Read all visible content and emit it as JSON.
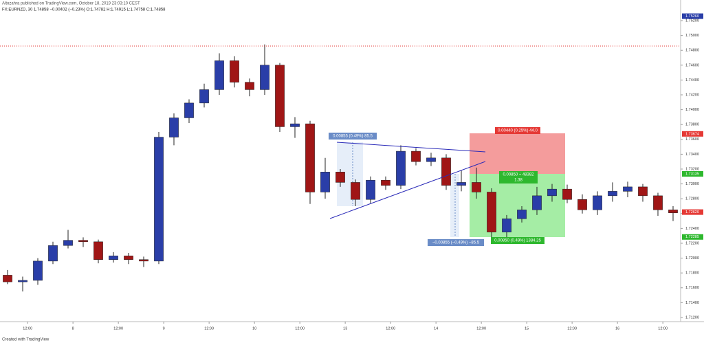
{
  "chart_data": {
    "type": "candlestick",
    "title": "Altozahra published on TradingView.com, October 18, 2019 23:03:10 CEST",
    "subtitle": "FX:EURNZD, 30  1.74858  −0.00402 (−0.23%)  O:1.74782 H:1.74915 L:1.74758 C:1.74858",
    "footer": "Created with TradingView",
    "up_color": "#2a3ea8",
    "down_color": "#a01616",
    "x": [
      6.7,
      10.7,
      14.7,
      18.7,
      22.7,
      26.7,
      30.7,
      34.7,
      38.7,
      42.7,
      46.7,
      50.7,
      54.7,
      58.7,
      62.7,
      66.7,
      70.7,
      74.7,
      78.7,
      82.7,
      86.7,
      90.7,
      94.7,
      98.7,
      102.7,
      106.7,
      110.7,
      114.7,
      118.7,
      122.7,
      126.7,
      130.7,
      134.7,
      138.7,
      142.7,
      146.7,
      150.7,
      154.7,
      158.7,
      162.7,
      166.7,
      170.7,
      174.7,
      178.7,
      182.7
    ],
    "open": [
      1.7177,
      1.7168,
      1.717,
      1.7196,
      1.7217,
      1.7224,
      1.7222,
      1.7198,
      1.7203,
      1.7198,
      1.7196,
      1.7363,
      1.7389,
      1.7409,
      1.7427,
      1.7466,
      1.7437,
      1.7427,
      1.746,
      1.7377,
      1.7381,
      1.7289,
      1.7316,
      1.7302,
      1.7279,
      1.7305,
      1.7298,
      1.7344,
      1.733,
      1.7335,
      1.7298,
      1.7302,
      1.7289,
      1.7235,
      1.7253,
      1.7265,
      1.7284,
      1.7293,
      1.7279,
      1.7265,
      1.7284,
      1.729,
      1.7296,
      1.7284,
      1.7265
    ],
    "high": [
      1.7184,
      1.7175,
      1.72,
      1.7222,
      1.7238,
      1.7228,
      1.7225,
      1.7208,
      1.7207,
      1.7202,
      1.737,
      1.7395,
      1.7414,
      1.7435,
      1.7476,
      1.7472,
      1.7442,
      1.7488,
      1.7463,
      1.739,
      1.7385,
      1.7335,
      1.732,
      1.7306,
      1.731,
      1.731,
      1.7352,
      1.7348,
      1.7342,
      1.734,
      1.7318,
      1.7322,
      1.7294,
      1.7258,
      1.727,
      1.7296,
      1.73,
      1.7299,
      1.7286,
      1.729,
      1.7302,
      1.7303,
      1.73,
      1.7288,
      1.727
    ],
    "low": [
      1.7165,
      1.7155,
      1.7164,
      1.7192,
      1.7213,
      1.7215,
      1.7193,
      1.7194,
      1.7192,
      1.7188,
      1.7192,
      1.7352,
      1.7382,
      1.7403,
      1.742,
      1.743,
      1.7418,
      1.742,
      1.737,
      1.7362,
      1.7273,
      1.728,
      1.7296,
      1.727,
      1.7274,
      1.7292,
      1.7293,
      1.7325,
      1.7324,
      1.7292,
      1.729,
      1.728,
      1.7226,
      1.7228,
      1.7248,
      1.7258,
      1.7276,
      1.7274,
      1.726,
      1.7258,
      1.7276,
      1.7282,
      1.7276,
      1.7257,
      1.725
    ],
    "close": [
      1.7168,
      1.717,
      1.7196,
      1.7217,
      1.7224,
      1.7222,
      1.7198,
      1.7203,
      1.7198,
      1.7196,
      1.7363,
      1.7389,
      1.7409,
      1.7427,
      1.7466,
      1.7437,
      1.7427,
      1.746,
      1.7377,
      1.7381,
      1.7289,
      1.7316,
      1.7302,
      1.7279,
      1.7305,
      1.7298,
      1.7344,
      1.733,
      1.7335,
      1.7298,
      1.7302,
      1.7289,
      1.7235,
      1.7253,
      1.7265,
      1.7284,
      1.7293,
      1.7279,
      1.7265,
      1.7284,
      1.729,
      1.7296,
      1.7284,
      1.7265,
      1.7261
    ],
    "xlim": [
      4.7,
      184.7
    ],
    "xticks": [
      {
        "value": 12,
        "label": "12:00"
      },
      {
        "value": 24,
        "label": "8"
      },
      {
        "value": 36,
        "label": "12:00"
      },
      {
        "value": 48,
        "label": "9"
      },
      {
        "value": 60,
        "label": "12:00"
      },
      {
        "value": 72,
        "label": "10"
      },
      {
        "value": 84,
        "label": "12:00"
      },
      {
        "value": 96,
        "label": "13"
      },
      {
        "value": 108,
        "label": "12:00"
      },
      {
        "value": 120,
        "label": "14"
      },
      {
        "value": 132,
        "label": "12:00"
      },
      {
        "value": 144,
        "label": "15"
      },
      {
        "value": 156,
        "label": "12:00"
      },
      {
        "value": 168,
        "label": "16"
      },
      {
        "value": 180,
        "label": "12:00"
      }
    ],
    "ylim": [
      1.71144,
      1.75478
    ],
    "yticks": [
      {
        "value": 1.712,
        "label": "1.71200"
      },
      {
        "value": 1.714,
        "label": "1.71400"
      },
      {
        "value": 1.716,
        "label": "1.71600"
      },
      {
        "value": 1.718,
        "label": "1.71800"
      },
      {
        "value": 1.72,
        "label": "1.72000"
      },
      {
        "value": 1.722,
        "label": "1.72200"
      },
      {
        "value": 1.724,
        "label": "1.72400"
      },
      {
        "value": 1.726,
        "label": "1.72600"
      },
      {
        "value": 1.728,
        "label": "1.72800"
      },
      {
        "value": 1.73,
        "label": "1.73000"
      },
      {
        "value": 1.732,
        "label": "1.73200"
      },
      {
        "value": 1.734,
        "label": "1.73400"
      },
      {
        "value": 1.736,
        "label": "1.73600"
      },
      {
        "value": 1.738,
        "label": "1.73800"
      },
      {
        "value": 1.74,
        "label": "1.74000"
      },
      {
        "value": 1.742,
        "label": "1.74200"
      },
      {
        "value": 1.744,
        "label": "1.74400"
      },
      {
        "value": 1.746,
        "label": "1.74600"
      },
      {
        "value": 1.748,
        "label": "1.74800"
      },
      {
        "value": 1.75,
        "label": "1.75000"
      },
      {
        "value": 1.752,
        "label": "1.75200"
      }
    ],
    "grid": false,
    "price_labels": [
      {
        "value": 1.7526,
        "label": "1.75260",
        "color": "#2a3ea8"
      },
      {
        "value": 1.73674,
        "label": "1.73674",
        "color": "#e53935"
      },
      {
        "value": 1.73135,
        "label": "1.73135",
        "color": "#2eb82e"
      },
      {
        "value": 1.7262,
        "label": "1.72620",
        "color": "#e53935"
      },
      {
        "value": 1.72285,
        "label": "1.72285",
        "color": "#2eb82e"
      }
    ],
    "annotations": [
      "0.00855 (0.49%) 85.5",
      "−0.00855 (−0.49%) −85.5",
      "0.00440 (0.25%) 44.0",
      "0.00850 ÷ 48382",
      "1.38",
      "0.00850 (0.49%) 1384.25"
    ]
  }
}
